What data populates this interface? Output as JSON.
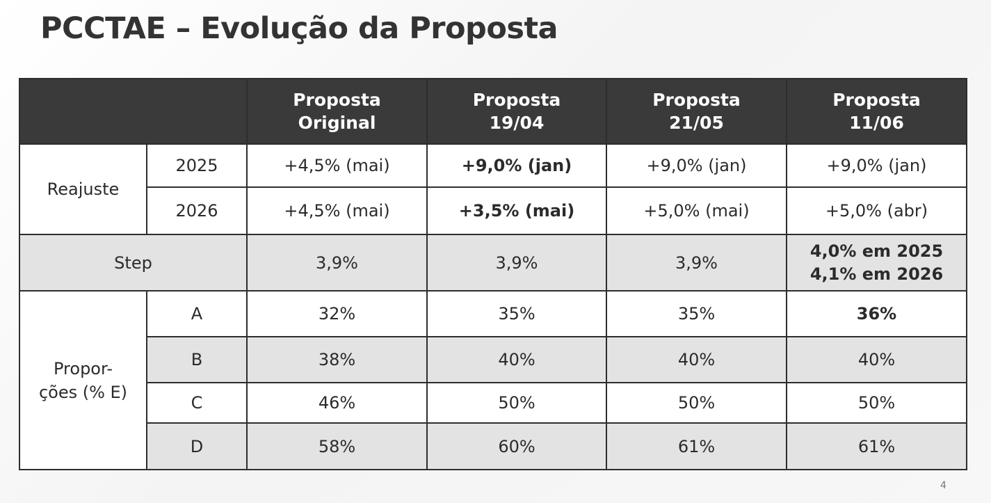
{
  "title": "PCCTAE – Evolução da Proposta",
  "columns": [
    {
      "line1": "Proposta",
      "line2": "Original"
    },
    {
      "line1": "Proposta",
      "line2": "19/04"
    },
    {
      "line1": "Proposta",
      "line2": "21/05"
    },
    {
      "line1": "Proposta",
      "line2": "11/06"
    }
  ],
  "reajuste": {
    "label": "Reajuste",
    "rows": [
      {
        "year": "2025",
        "values": [
          "+4,5% (mai)",
          "+9,0% (jan)",
          "+9,0% (jan)",
          "+9,0% (jan)"
        ]
      },
      {
        "year": "2026",
        "values": [
          "+4,5% (mai)",
          "+3,5% (mai)",
          "+5,0% (mai)",
          "+5,0% (abr)"
        ]
      }
    ]
  },
  "step": {
    "label": "Step",
    "values": [
      "3,9%",
      "3,9%",
      "3,9%"
    ],
    "final_line1": "4,0% em 2025",
    "final_line2": "4,1% em 2026"
  },
  "proporcoes": {
    "label_line1": "Propor-",
    "label_line2": "ções (% E)",
    "rows": [
      {
        "level": "A",
        "values": [
          "32%",
          "35%",
          "35%",
          "36%"
        ]
      },
      {
        "level": "B",
        "values": [
          "38%",
          "40%",
          "40%",
          "40%"
        ]
      },
      {
        "level": "C",
        "values": [
          "46%",
          "50%",
          "50%",
          "50%"
        ]
      },
      {
        "level": "D",
        "values": [
          "58%",
          "60%",
          "61%",
          "61%"
        ]
      }
    ]
  },
  "page_number": "4"
}
